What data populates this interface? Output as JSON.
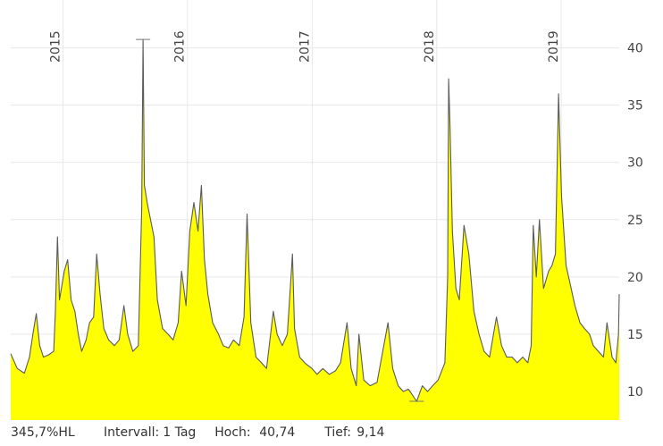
{
  "chart_data": {
    "type": "area",
    "x_axis": {
      "type": "time",
      "range": [
        "2014-08-01",
        "2019-06-20"
      ]
    },
    "y_axis": {
      "position": "right",
      "range": [
        7.5,
        42
      ],
      "ticks": [
        10,
        15,
        20,
        25,
        30,
        35,
        40
      ]
    },
    "year_labels": [
      {
        "label": "2015",
        "date": "2015-01-01"
      },
      {
        "label": "2016",
        "date": "2016-01-01"
      },
      {
        "label": "2017",
        "date": "2017-01-01"
      },
      {
        "label": "2018",
        "date": "2018-01-01"
      },
      {
        "label": "2019",
        "date": "2019-01-01"
      }
    ],
    "grid": true,
    "high_marker": {
      "date": "2015-08-24",
      "value": 40.74
    },
    "low_marker": {
      "date": "2017-11-03",
      "value": 9.14
    },
    "series": [
      {
        "points": [
          [
            "2014-08-01",
            13.3
          ],
          [
            "2014-08-20",
            12.0
          ],
          [
            "2014-09-10",
            11.6
          ],
          [
            "2014-09-25",
            13.0
          ],
          [
            "2014-10-05",
            15.0
          ],
          [
            "2014-10-15",
            16.8
          ],
          [
            "2014-10-25",
            14.0
          ],
          [
            "2014-11-05",
            13.0
          ],
          [
            "2014-11-20",
            13.2
          ],
          [
            "2014-12-05",
            13.5
          ],
          [
            "2014-12-10",
            17.0
          ],
          [
            "2014-12-16",
            23.5
          ],
          [
            "2014-12-22",
            18.0
          ],
          [
            "2015-01-05",
            20.5
          ],
          [
            "2015-01-15",
            21.5
          ],
          [
            "2015-01-25",
            18.0
          ],
          [
            "2015-02-05",
            17.0
          ],
          [
            "2015-02-15",
            15.0
          ],
          [
            "2015-02-25",
            13.5
          ],
          [
            "2015-03-10",
            14.5
          ],
          [
            "2015-03-20",
            16.0
          ],
          [
            "2015-04-01",
            16.5
          ],
          [
            "2015-04-10",
            22.0
          ],
          [
            "2015-04-20",
            18.5
          ],
          [
            "2015-05-01",
            15.5
          ],
          [
            "2015-05-15",
            14.5
          ],
          [
            "2015-06-01",
            14.0
          ],
          [
            "2015-06-15",
            14.5
          ],
          [
            "2015-06-29",
            17.5
          ],
          [
            "2015-07-10",
            15.0
          ],
          [
            "2015-07-25",
            13.5
          ],
          [
            "2015-08-10",
            14.0
          ],
          [
            "2015-08-20",
            26.0
          ],
          [
            "2015-08-24",
            40.74
          ],
          [
            "2015-08-28",
            28.0
          ],
          [
            "2015-09-05",
            26.5
          ],
          [
            "2015-09-15",
            25.0
          ],
          [
            "2015-09-25",
            23.5
          ],
          [
            "2015-10-05",
            18.0
          ],
          [
            "2015-10-20",
            15.5
          ],
          [
            "2015-11-05",
            15.0
          ],
          [
            "2015-11-20",
            14.5
          ],
          [
            "2015-12-05",
            16.0
          ],
          [
            "2015-12-15",
            20.5
          ],
          [
            "2015-12-28",
            17.5
          ],
          [
            "2016-01-08",
            24.0
          ],
          [
            "2016-01-20",
            26.5
          ],
          [
            "2016-02-01",
            24.0
          ],
          [
            "2016-02-11",
            28.0
          ],
          [
            "2016-02-20",
            21.5
          ],
          [
            "2016-03-01",
            18.5
          ],
          [
            "2016-03-15",
            16.0
          ],
          [
            "2016-04-01",
            15.0
          ],
          [
            "2016-04-15",
            14.0
          ],
          [
            "2016-05-01",
            13.8
          ],
          [
            "2016-05-15",
            14.5
          ],
          [
            "2016-06-01",
            14.0
          ],
          [
            "2016-06-15",
            16.5
          ],
          [
            "2016-06-24",
            25.5
          ],
          [
            "2016-07-05",
            16.0
          ],
          [
            "2016-07-20",
            13.0
          ],
          [
            "2016-08-05",
            12.5
          ],
          [
            "2016-08-20",
            12.0
          ],
          [
            "2016-09-09",
            17.0
          ],
          [
            "2016-09-20",
            15.0
          ],
          [
            "2016-10-05",
            14.0
          ],
          [
            "2016-10-20",
            15.0
          ],
          [
            "2016-11-04",
            22.0
          ],
          [
            "2016-11-10",
            15.5
          ],
          [
            "2016-11-25",
            13.0
          ],
          [
            "2016-12-10",
            12.5
          ],
          [
            "2016-12-31",
            12.0
          ],
          [
            "2017-01-15",
            11.5
          ],
          [
            "2017-02-01",
            12.0
          ],
          [
            "2017-02-20",
            11.5
          ],
          [
            "2017-03-10",
            11.8
          ],
          [
            "2017-03-25",
            12.5
          ],
          [
            "2017-04-13",
            16.0
          ],
          [
            "2017-04-25",
            12.0
          ],
          [
            "2017-05-10",
            10.5
          ],
          [
            "2017-05-18",
            15.0
          ],
          [
            "2017-06-01",
            11.0
          ],
          [
            "2017-06-20",
            10.5
          ],
          [
            "2017-07-10",
            10.8
          ],
          [
            "2017-08-11",
            16.0
          ],
          [
            "2017-08-25",
            12.0
          ],
          [
            "2017-09-10",
            10.5
          ],
          [
            "2017-09-25",
            10.0
          ],
          [
            "2017-10-10",
            10.2
          ],
          [
            "2017-11-03",
            9.14
          ],
          [
            "2017-11-20",
            10.5
          ],
          [
            "2017-12-05",
            10.0
          ],
          [
            "2017-12-20",
            10.5
          ],
          [
            "2018-01-05",
            11.0
          ],
          [
            "2018-01-25",
            12.5
          ],
          [
            "2018-02-02",
            20.0
          ],
          [
            "2018-02-05",
            37.3
          ],
          [
            "2018-02-09",
            33.0
          ],
          [
            "2018-02-16",
            24.0
          ],
          [
            "2018-02-26",
            19.0
          ],
          [
            "2018-03-08",
            18.0
          ],
          [
            "2018-03-22",
            24.5
          ],
          [
            "2018-04-05",
            22.0
          ],
          [
            "2018-04-20",
            17.0
          ],
          [
            "2018-05-05",
            15.0
          ],
          [
            "2018-05-20",
            13.5
          ],
          [
            "2018-06-05",
            13.0
          ],
          [
            "2018-06-25",
            16.5
          ],
          [
            "2018-07-10",
            14.0
          ],
          [
            "2018-07-25",
            13.0
          ],
          [
            "2018-08-10",
            13.0
          ],
          [
            "2018-08-25",
            12.5
          ],
          [
            "2018-09-10",
            13.0
          ],
          [
            "2018-09-25",
            12.5
          ],
          [
            "2018-10-05",
            14.0
          ],
          [
            "2018-10-11",
            24.5
          ],
          [
            "2018-10-20",
            20.0
          ],
          [
            "2018-10-29",
            25.0
          ],
          [
            "2018-11-10",
            19.0
          ],
          [
            "2018-11-25",
            20.5
          ],
          [
            "2018-12-05",
            21.0
          ],
          [
            "2018-12-15",
            22.0
          ],
          [
            "2018-12-24",
            36.0
          ],
          [
            "2019-01-02",
            27.0
          ],
          [
            "2019-01-15",
            21.0
          ],
          [
            "2019-01-30",
            19.0
          ],
          [
            "2019-02-10",
            17.5
          ],
          [
            "2019-02-25",
            16.0
          ],
          [
            "2019-03-10",
            15.5
          ],
          [
            "2019-03-25",
            15.0
          ],
          [
            "2019-04-05",
            14.0
          ],
          [
            "2019-04-20",
            13.5
          ],
          [
            "2019-05-05",
            13.0
          ],
          [
            "2019-05-15",
            16.0
          ],
          [
            "2019-05-30",
            13.0
          ],
          [
            "2019-06-10",
            12.5
          ],
          [
            "2019-06-18",
            15.0
          ],
          [
            "2019-06-20",
            18.5
          ]
        ]
      }
    ]
  },
  "footer": {
    "change": "345,7%HL",
    "interval_label": "Intervall:",
    "interval_value": "1 Tag",
    "high_label": "Hoch:",
    "high_value": "40,74",
    "low_label": "Tief:",
    "low_value": "9,14"
  },
  "colors": {
    "fill": "#ffff00",
    "line": "#5a5a5a",
    "grid": "#e8e8e8",
    "marker": "#777777"
  }
}
